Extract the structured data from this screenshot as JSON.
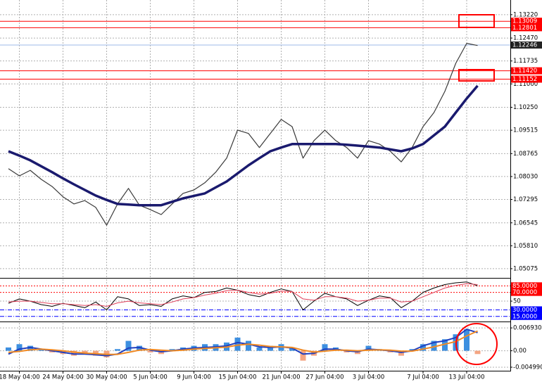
{
  "chart_data": [
    {
      "type": "line",
      "categories": [
        null,
        "18 May 04:00",
        null,
        null,
        null,
        "24 May 04:00",
        null,
        null,
        null,
        "30 May 04:00",
        null,
        null,
        null,
        "5 Jun 04:00",
        null,
        null,
        null,
        "9 Jun 04:00",
        null,
        null,
        null,
        "15 Jun 04:00",
        null,
        null,
        null,
        "21 Jun 04:00",
        null,
        null,
        null,
        "27 Jun 04:00",
        null,
        null,
        null,
        "3 Jul 04:00",
        null,
        null,
        null,
        null,
        "7 Jul 04:00",
        null,
        null,
        null,
        "13 Jul 04:00",
        null
      ],
      "series": [
        {
          "color": "#3a3a3a",
          "width": 1.2,
          "values": [
            1.0828,
            1.0805,
            1.0823,
            1.0794,
            1.0771,
            1.0738,
            1.0715,
            1.0726,
            1.0704,
            1.0647,
            1.0715,
            1.0765,
            1.0711,
            1.0697,
            1.0681,
            1.0715,
            1.0749,
            1.076,
            1.0783,
            1.0817,
            1.0862,
            1.0952,
            1.0941,
            1.0896,
            1.0941,
            1.0986,
            1.0963,
            1.0862,
            1.0918,
            1.0952,
            1.0918,
            1.0896,
            1.0862,
            1.0918,
            1.0907,
            1.0884,
            1.085,
            1.0896,
            1.0963,
            1.1008,
            1.1076,
            1.1166,
            1.123,
            1.1223
          ]
        },
        {
          "color": "#1a1a6e",
          "width": 3.5,
          "values": [
            1.0884,
            1.087,
            1.0855,
            1.0836,
            1.0817,
            1.0797,
            1.0778,
            1.076,
            1.0742,
            1.0728,
            1.0715,
            1.0713,
            1.0711,
            1.0711,
            1.0711,
            1.0722,
            1.0733,
            1.0741,
            1.0749,
            1.0768,
            1.0787,
            1.0813,
            1.0839,
            1.0862,
            1.0884,
            1.0896,
            1.0907,
            1.0907,
            1.0907,
            1.0907,
            1.0907,
            1.0905,
            1.0902,
            1.0899,
            1.0896,
            1.089,
            1.0884,
            1.0893,
            1.0907,
            1.0935,
            1.0963,
            1.1008,
            1.1053,
            1.1094
          ]
        }
      ],
      "ylim": [
        1.0478,
        1.1369
      ],
      "yticks": [
        {
          "value": 1.1322,
          "label": "1.13220"
        },
        {
          "value": 1.1247,
          "label": "1.12470"
        },
        1.11735,
        {
          "value": 1.11,
          "label": "1.11000"
        },
        {
          "value": 1.1025,
          "label": "1.10250"
        },
        1.09515,
        1.08765,
        {
          "value": 1.0803,
          "label": "1.08030"
        },
        1.07295,
        1.06545,
        {
          "value": 1.0581,
          "label": "1.05810"
        },
        1.05075
      ],
      "grid": true,
      "hlines": [
        {
          "value": 1.13009,
          "color": "#ff0000"
        },
        {
          "value": 1.12801,
          "color": "#ff0000"
        },
        {
          "value": 1.12246,
          "color": "#9db8e8"
        },
        {
          "value": 1.1142,
          "label": "1.11420",
          "color": "#ff0000"
        },
        {
          "value": 1.11152,
          "color": "#ff0000"
        }
      ]
    },
    {
      "type": "line",
      "series": [
        {
          "color": "#000000",
          "width": 1,
          "values": [
            45,
            55,
            50,
            42,
            38,
            45,
            40,
            35,
            48,
            30,
            60,
            55,
            40,
            42,
            38,
            55,
            62,
            58,
            70,
            72,
            80,
            75,
            65,
            60,
            70,
            78,
            72,
            30,
            50,
            68,
            60,
            55,
            40,
            52,
            62,
            58,
            35,
            50,
            70,
            80,
            88,
            92,
            94,
            85
          ]
        },
        {
          "color": "#e0405a",
          "width": 1,
          "values": [
            48,
            50,
            50,
            47,
            44,
            44,
            42,
            40,
            42,
            38,
            46,
            50,
            46,
            44,
            42,
            48,
            55,
            58,
            64,
            68,
            74,
            75,
            70,
            66,
            68,
            73,
            72,
            55,
            52,
            60,
            60,
            57,
            50,
            52,
            57,
            57,
            48,
            50,
            60,
            70,
            80,
            86,
            90,
            88
          ]
        }
      ],
      "ylim": [
        5,
        100
      ],
      "yticks": [
        50
      ],
      "hlines": [
        {
          "value": 85,
          "label": "85.0000",
          "color": "#ff0000"
        },
        {
          "value": 70,
          "label": "70.0000",
          "color": "#ff0000"
        },
        {
          "value": 30,
          "label": "30.0000",
          "color": "#0000ff"
        },
        {
          "value": 15,
          "label": "15.0000",
          "color": "#0000ff"
        }
      ]
    },
    {
      "type": "macd",
      "histogram": {
        "up_color": "#3d8fe0",
        "down_color": "#f4a582",
        "values": [
          0.001,
          0.002,
          0.0015,
          0.0005,
          -0.0005,
          -0.001,
          -0.0015,
          -0.001,
          -0.0015,
          -0.002,
          0.0005,
          0.003,
          0.0015,
          -0.0005,
          -0.001,
          0.0005,
          0.001,
          0.0015,
          0.002,
          0.002,
          0.0025,
          0.004,
          0.003,
          0.001,
          0.0015,
          0.002,
          0.001,
          -0.003,
          -0.0015,
          0.002,
          0.001,
          -0.0005,
          -0.001,
          0.0015,
          0.0005,
          -0.0005,
          -0.0015,
          0.0005,
          0.002,
          0.003,
          0.0035,
          0.005,
          0.0065,
          -0.001
        ]
      },
      "series": [
        {
          "color": "#1f3fbf",
          "width": 2,
          "values": [
            -0.001,
            0.0005,
            0.001,
            0.0005,
            0,
            -0.0005,
            -0.001,
            -0.001,
            -0.0012,
            -0.0015,
            -0.001,
            0.0008,
            0.001,
            0.0002,
            -0.0003,
            0,
            0.0005,
            0.0008,
            0.001,
            0.0012,
            0.0015,
            0.0025,
            0.002,
            0.0012,
            0.001,
            0.0012,
            0.0008,
            -0.001,
            -0.0008,
            0.0005,
            0.0005,
            0,
            -0.0003,
            0.0005,
            0.0003,
            0,
            -0.0005,
            0,
            0.0015,
            0.0025,
            0.003,
            0.004,
            0.0065,
            0.0055
          ]
        },
        {
          "color": "#f08a24",
          "width": 2,
          "values": [
            -0.0005,
            -0.0002,
            0.0003,
            0.0005,
            0.0003,
            0,
            -0.0004,
            -0.0007,
            -0.0009,
            -0.0011,
            -0.0011,
            -0.0005,
            0.0002,
            0.0004,
            0.0002,
            0,
            0.0002,
            0.0005,
            0.0007,
            0.0009,
            0.0011,
            0.0017,
            0.002,
            0.0017,
            0.0013,
            0.0012,
            0.001,
            0.0002,
            -0.0004,
            -0.0001,
            0.0002,
            0.0002,
            0,
            0.0002,
            0.0003,
            0.0002,
            -0.0001,
            -0.0001,
            0.0005,
            0.0012,
            0.002,
            0.0028,
            0.0045,
            0.006
          ]
        }
      ],
      "ylim": [
        -0.00585,
        0.00845
      ],
      "yticks": [
        0.0069306,
        {
          "value": 0,
          "label": "0.00"
        },
        -0.0049907
      ]
    }
  ]
}
